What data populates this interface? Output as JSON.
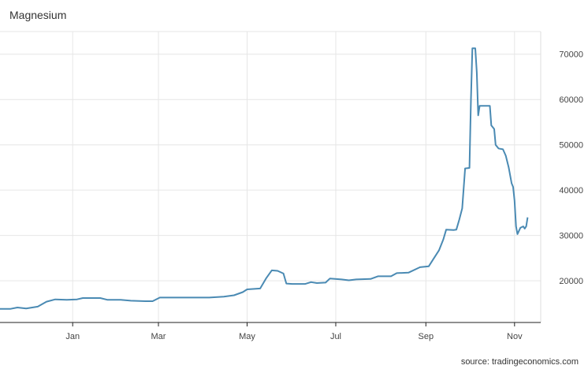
{
  "chart_data": {
    "type": "line",
    "title": "Magnesium",
    "source": "source: tradingeconomics.com",
    "xlabel": "",
    "ylabel": "",
    "y_axis_position": "right",
    "ylim": [
      10800,
      75000
    ],
    "y_ticks": [
      20000,
      30000,
      40000,
      50000,
      60000,
      70000
    ],
    "y_tick_labels": [
      "20000",
      "30000",
      "40000",
      "50000",
      "60000",
      "70000"
    ],
    "grid": true,
    "line_color": "#4a8ab3",
    "x_ticks": [
      {
        "date": "2021-01-01",
        "label": "Jan"
      },
      {
        "date": "2021-03-01",
        "label": "Mar"
      },
      {
        "date": "2021-05-01",
        "label": "May"
      },
      {
        "date": "2021-07-01",
        "label": "Jul"
      },
      {
        "date": "2021-09-01",
        "label": "Sep"
      },
      {
        "date": "2021-11-01",
        "label": "Nov"
      }
    ],
    "xlim": [
      "2020-11-12",
      "2021-11-19"
    ],
    "series": [
      {
        "values": [
          [
            "2020-11-12",
            13800
          ],
          [
            "2020-11-19",
            13800
          ],
          [
            "2020-11-24",
            14100
          ],
          [
            "2020-11-30",
            13900
          ],
          [
            "2020-12-08",
            14300
          ],
          [
            "2020-12-14",
            15400
          ],
          [
            "2020-12-20",
            15900
          ],
          [
            "2020-12-28",
            15800
          ],
          [
            "2021-01-04",
            15900
          ],
          [
            "2021-01-08",
            16200
          ],
          [
            "2021-01-20",
            16200
          ],
          [
            "2021-01-25",
            15800
          ],
          [
            "2021-02-03",
            15800
          ],
          [
            "2021-02-10",
            15600
          ],
          [
            "2021-02-20",
            15500
          ],
          [
            "2021-02-25",
            15500
          ],
          [
            "2021-03-02",
            16300
          ],
          [
            "2021-03-10",
            16300
          ],
          [
            "2021-03-25",
            16300
          ],
          [
            "2021-04-05",
            16300
          ],
          [
            "2021-04-15",
            16500
          ],
          [
            "2021-04-22",
            16800
          ],
          [
            "2021-04-28",
            17500
          ],
          [
            "2021-05-01",
            18100
          ],
          [
            "2021-05-10",
            18300
          ],
          [
            "2021-05-14",
            20500
          ],
          [
            "2021-05-18",
            22300
          ],
          [
            "2021-05-22",
            22200
          ],
          [
            "2021-05-26",
            21600
          ],
          [
            "2021-05-28",
            19400
          ],
          [
            "2021-06-01",
            19300
          ],
          [
            "2021-06-10",
            19300
          ],
          [
            "2021-06-14",
            19700
          ],
          [
            "2021-06-18",
            19500
          ],
          [
            "2021-06-24",
            19600
          ],
          [
            "2021-06-27",
            20500
          ],
          [
            "2021-07-05",
            20300
          ],
          [
            "2021-07-10",
            20100
          ],
          [
            "2021-07-15",
            20300
          ],
          [
            "2021-07-25",
            20400
          ],
          [
            "2021-07-30",
            21000
          ],
          [
            "2021-08-08",
            21000
          ],
          [
            "2021-08-12",
            21700
          ],
          [
            "2021-08-20",
            21800
          ],
          [
            "2021-08-28",
            23000
          ],
          [
            "2021-09-03",
            23200
          ],
          [
            "2021-09-06",
            24700
          ],
          [
            "2021-09-10",
            26700
          ],
          [
            "2021-09-13",
            29100
          ],
          [
            "2021-09-15",
            31300
          ],
          [
            "2021-09-20",
            31200
          ],
          [
            "2021-09-22",
            31300
          ],
          [
            "2021-09-24",
            33500
          ],
          [
            "2021-09-26",
            36000
          ],
          [
            "2021-09-28",
            44800
          ],
          [
            "2021-10-01",
            44900
          ],
          [
            "2021-10-02",
            60000
          ],
          [
            "2021-10-03",
            71300
          ],
          [
            "2021-10-05",
            71300
          ],
          [
            "2021-10-06",
            66000
          ],
          [
            "2021-10-07",
            56500
          ],
          [
            "2021-10-08",
            58600
          ],
          [
            "2021-10-15",
            58600
          ],
          [
            "2021-10-16",
            54300
          ],
          [
            "2021-10-18",
            53500
          ],
          [
            "2021-10-19",
            50000
          ],
          [
            "2021-10-21",
            49200
          ],
          [
            "2021-10-24",
            49000
          ],
          [
            "2021-10-26",
            47600
          ],
          [
            "2021-10-28",
            45000
          ],
          [
            "2021-10-30",
            41500
          ],
          [
            "2021-10-31",
            40700
          ],
          [
            "2021-11-01",
            37700
          ],
          [
            "2021-11-02",
            32000
          ],
          [
            "2021-11-03",
            30300
          ],
          [
            "2021-11-05",
            31700
          ],
          [
            "2021-11-07",
            32000
          ],
          [
            "2021-11-08",
            31500
          ],
          [
            "2021-11-09",
            32000
          ],
          [
            "2021-11-10",
            34000
          ]
        ]
      }
    ]
  }
}
